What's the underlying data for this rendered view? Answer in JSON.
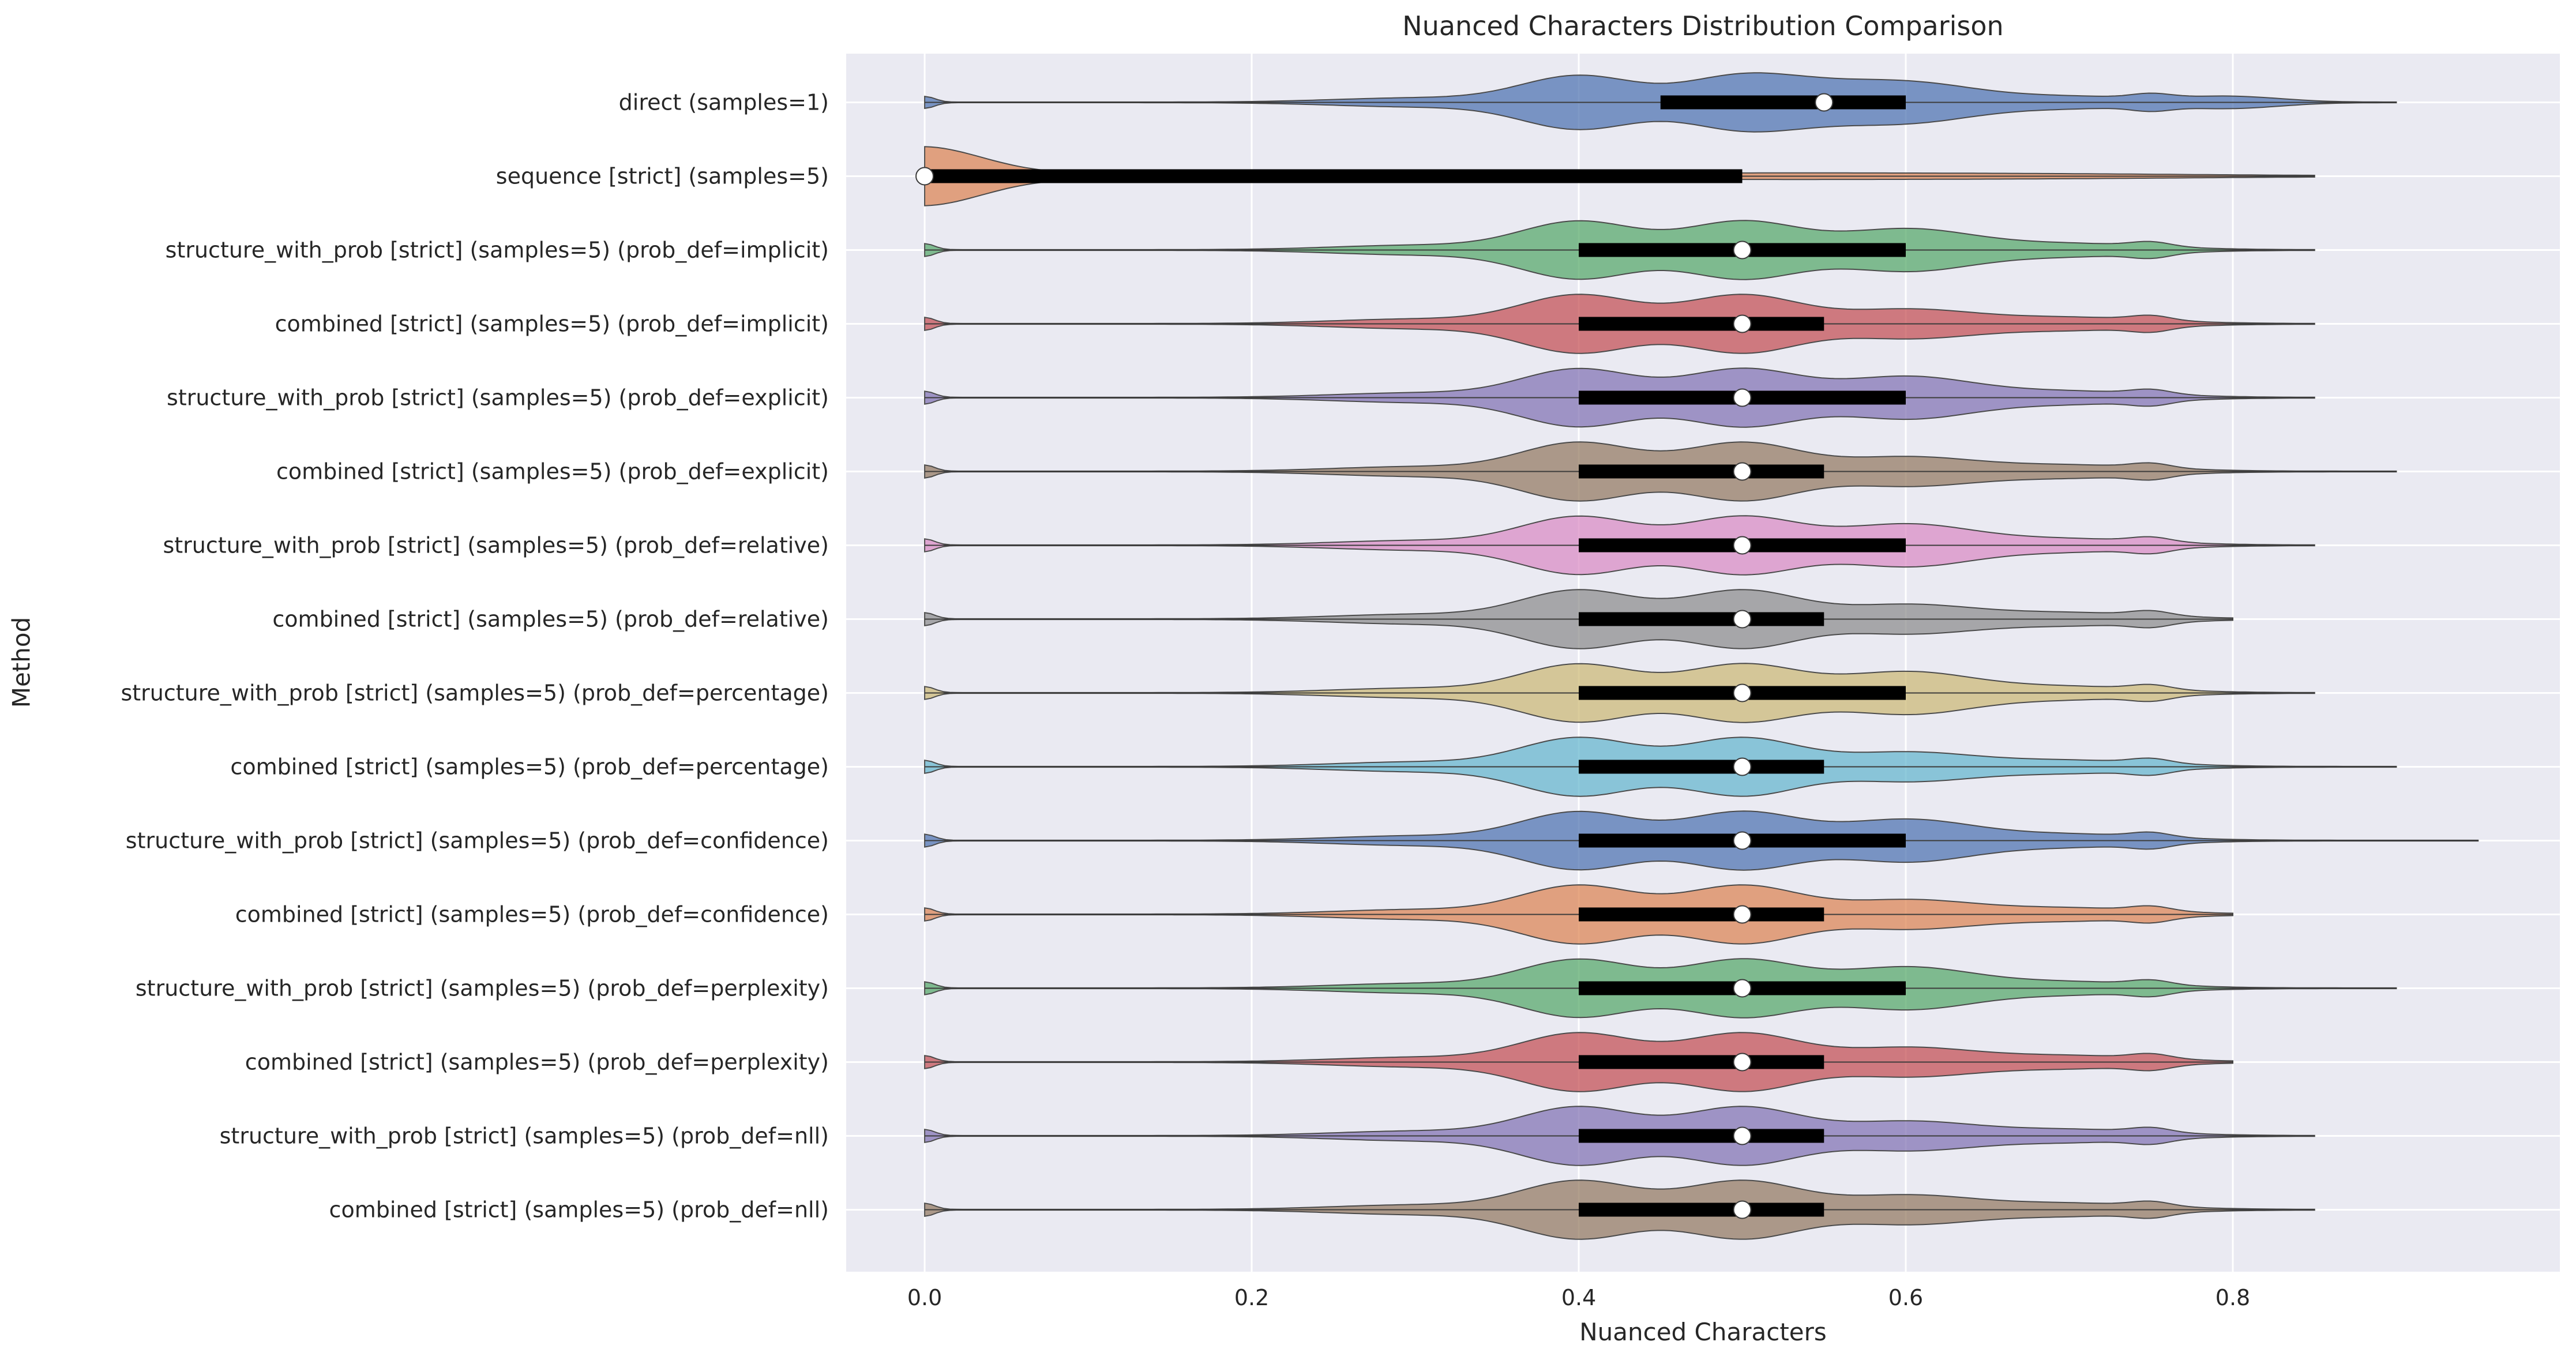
{
  "chart_data": {
    "type": "violin",
    "orientation": "horizontal",
    "title": "Nuanced Characters Distribution Comparison",
    "xlabel": "Nuanced Characters",
    "ylabel": "Method",
    "xlim": [
      -0.048,
      1.0
    ],
    "x_ticks": [
      0.0,
      0.2,
      0.4,
      0.6,
      0.8
    ],
    "x_tick_labels": [
      "0.0",
      "0.2",
      "0.4",
      "0.6",
      "0.8"
    ],
    "grid": true,
    "background": "#eaeaf2",
    "grid_color": "#ffffff",
    "colors": [
      "#4c72b0",
      "#dd8452",
      "#55a868",
      "#c44e52",
      "#8172b3",
      "#937860",
      "#da8bc3",
      "#8c8c8c",
      "#ccb974",
      "#64b5cd"
    ],
    "categories": [
      "direct (samples=1)",
      "sequence [strict] (samples=5)",
      "structure_with_prob [strict] (samples=5) (prob_def=implicit)",
      "combined [strict] (samples=5) (prob_def=implicit)",
      "structure_with_prob [strict] (samples=5) (prob_def=explicit)",
      "combined [strict] (samples=5) (prob_def=explicit)",
      "structure_with_prob [strict] (samples=5) (prob_def=relative)",
      "combined [strict] (samples=5) (prob_def=relative)",
      "structure_with_prob [strict] (samples=5) (prob_def=percentage)",
      "combined [strict] (samples=5) (prob_def=percentage)",
      "structure_with_prob [strict] (samples=5) (prob_def=confidence)",
      "combined [strict] (samples=5) (prob_def=confidence)",
      "structure_with_prob [strict] (samples=5) (prob_def=perplexity)",
      "combined [strict] (samples=5) (prob_def=perplexity)",
      "structure_with_prob [strict] (samples=5) (prob_def=nll)",
      "combined [strict] (samples=5) (prob_def=nll)"
    ],
    "series": [
      {
        "min": 0.0,
        "q1": 0.45,
        "median": 0.55,
        "q3": 0.6,
        "max": 0.9
      },
      {
        "min": 0.0,
        "q1": 0.0,
        "median": 0.0,
        "q3": 0.5,
        "max": 0.85
      },
      {
        "min": 0.0,
        "q1": 0.4,
        "median": 0.5,
        "q3": 0.6,
        "max": 0.85
      },
      {
        "min": 0.0,
        "q1": 0.4,
        "median": 0.5,
        "q3": 0.55,
        "max": 0.85
      },
      {
        "min": 0.0,
        "q1": 0.4,
        "median": 0.5,
        "q3": 0.6,
        "max": 0.85
      },
      {
        "min": 0.0,
        "q1": 0.4,
        "median": 0.5,
        "q3": 0.55,
        "max": 0.9
      },
      {
        "min": 0.0,
        "q1": 0.4,
        "median": 0.5,
        "q3": 0.6,
        "max": 0.85
      },
      {
        "min": 0.0,
        "q1": 0.4,
        "median": 0.5,
        "q3": 0.55,
        "max": 0.8
      },
      {
        "min": 0.0,
        "q1": 0.4,
        "median": 0.5,
        "q3": 0.6,
        "max": 0.85
      },
      {
        "min": 0.0,
        "q1": 0.4,
        "median": 0.5,
        "q3": 0.55,
        "max": 0.9
      },
      {
        "min": 0.0,
        "q1": 0.4,
        "median": 0.5,
        "q3": 0.6,
        "max": 0.95
      },
      {
        "min": 0.0,
        "q1": 0.4,
        "median": 0.5,
        "q3": 0.55,
        "max": 0.8
      },
      {
        "min": 0.0,
        "q1": 0.4,
        "median": 0.5,
        "q3": 0.6,
        "max": 0.9
      },
      {
        "min": 0.0,
        "q1": 0.4,
        "median": 0.5,
        "q3": 0.55,
        "max": 0.8
      },
      {
        "min": 0.0,
        "q1": 0.4,
        "median": 0.5,
        "q3": 0.55,
        "max": 0.85
      },
      {
        "min": 0.0,
        "q1": 0.4,
        "median": 0.5,
        "q3": 0.55,
        "max": 0.85
      }
    ]
  }
}
